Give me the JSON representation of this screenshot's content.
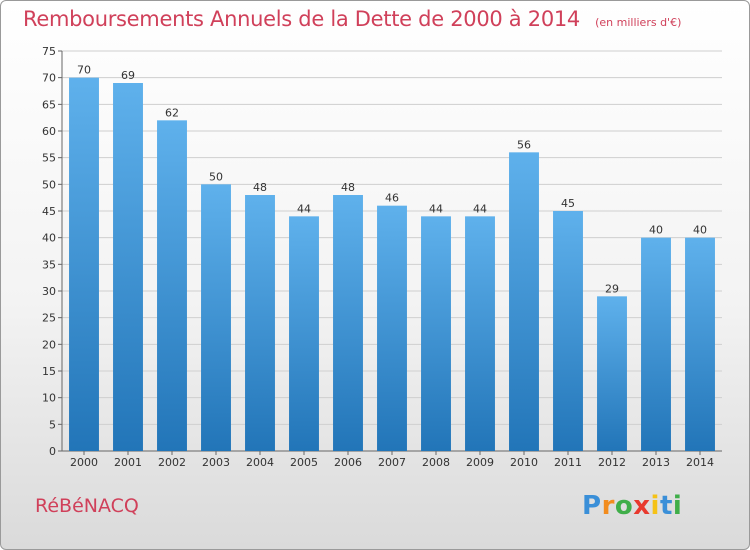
{
  "title": "Remboursements Annuels de la Dette de 2000 à 2014",
  "unit_note": "(en milliers d'€)",
  "city": "RéBéNACQ",
  "brand": {
    "letters": [
      "P",
      "r",
      "o",
      "x",
      "i",
      "t",
      "i"
    ],
    "colors": [
      "#3a8fd8",
      "#f28c1e",
      "#3fae49",
      "#e8392e",
      "#f5c216",
      "#3a8fd8",
      "#3fae49"
    ]
  },
  "colors": {
    "title": "#d0405a",
    "bar_light": "#5fb1ec",
    "bar_dark": "#2275b8",
    "grid": "#cfcfcf"
  },
  "chart_data": {
    "type": "bar",
    "categories": [
      "2000",
      "2001",
      "2002",
      "2003",
      "2004",
      "2005",
      "2006",
      "2007",
      "2008",
      "2009",
      "2010",
      "2011",
      "2012",
      "2013",
      "2014"
    ],
    "values": [
      70,
      69,
      62,
      50,
      48,
      44,
      48,
      46,
      44,
      44,
      56,
      45,
      29,
      40,
      40
    ],
    "ylim": [
      0,
      75
    ],
    "yticks": [
      0,
      5,
      10,
      15,
      20,
      25,
      30,
      35,
      40,
      45,
      50,
      55,
      60,
      65,
      70,
      75
    ],
    "grid": true,
    "data_labels": true
  }
}
